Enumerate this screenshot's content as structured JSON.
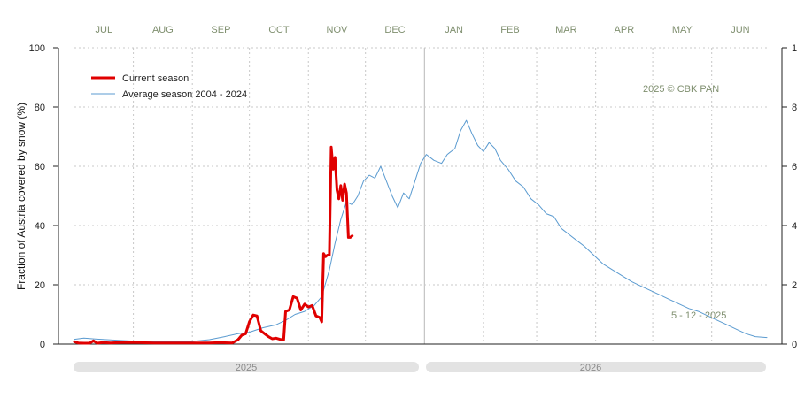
{
  "chart_data": {
    "type": "line",
    "ylabel": "Fraction of  Austria  covered by snow (%)",
    "ylim": [
      0,
      100
    ],
    "yticks": [
      0,
      20,
      40,
      60,
      80,
      100
    ],
    "x_axis": {
      "start": "2025-07-01",
      "end": "2026-06-30",
      "month_labels": [
        "JUL",
        "AUG",
        "SEP",
        "OCT",
        "NOV",
        "DEC",
        "JAN",
        "FEB",
        "MAR",
        "APR",
        "MAY",
        "JUN"
      ],
      "year_labels": [
        "2025",
        "2026"
      ]
    },
    "grid": true,
    "legend": {
      "position": "top-left"
    },
    "series": [
      {
        "name": "Current season",
        "color": "#e00000",
        "points": [
          [
            "2025-07-01",
            0.8
          ],
          [
            "2025-07-03",
            0.4
          ],
          [
            "2025-07-06",
            0.3
          ],
          [
            "2025-07-09",
            0.3
          ],
          [
            "2025-07-11",
            1.1
          ],
          [
            "2025-07-13",
            0.3
          ],
          [
            "2025-07-16",
            0.5
          ],
          [
            "2025-07-20",
            0.4
          ],
          [
            "2025-07-26",
            0.5
          ],
          [
            "2025-08-03",
            0.5
          ],
          [
            "2025-08-12",
            0.4
          ],
          [
            "2025-08-22",
            0.4
          ],
          [
            "2025-09-01",
            0.4
          ],
          [
            "2025-09-10",
            0.4
          ],
          [
            "2025-09-16",
            0.5
          ],
          [
            "2025-09-22",
            0.4
          ],
          [
            "2025-09-25",
            1.5
          ],
          [
            "2025-09-27",
            3.0
          ],
          [
            "2025-09-29",
            3.5
          ],
          [
            "2025-10-01",
            7.5
          ],
          [
            "2025-10-03",
            9.8
          ],
          [
            "2025-10-05",
            9.5
          ],
          [
            "2025-10-07",
            4.5
          ],
          [
            "2025-10-09",
            3.5
          ],
          [
            "2025-10-11",
            2.5
          ],
          [
            "2025-10-13",
            1.8
          ],
          [
            "2025-10-15",
            2.0
          ],
          [
            "2025-10-17",
            1.6
          ],
          [
            "2025-10-19",
            1.4
          ],
          [
            "2025-10-20",
            11.0
          ],
          [
            "2025-10-22",
            11.5
          ],
          [
            "2025-10-24",
            16.0
          ],
          [
            "2025-10-26",
            15.5
          ],
          [
            "2025-10-28",
            11.5
          ],
          [
            "2025-10-30",
            13.5
          ],
          [
            "2025-11-01",
            12.5
          ],
          [
            "2025-11-03",
            13.0
          ],
          [
            "2025-11-05",
            9.5
          ],
          [
            "2025-11-07",
            9.0
          ],
          [
            "2025-11-08",
            7.5
          ],
          [
            "2025-11-09",
            30.5
          ],
          [
            "2025-11-10",
            29.5
          ],
          [
            "2025-11-11",
            30.0
          ],
          [
            "2025-11-12",
            30.0
          ],
          [
            "2025-11-13",
            66.5
          ],
          [
            "2025-11-14",
            59.0
          ],
          [
            "2025-11-15",
            63.0
          ],
          [
            "2025-11-16",
            52.0
          ],
          [
            "2025-11-17",
            49.0
          ],
          [
            "2025-11-18",
            53.5
          ],
          [
            "2025-11-19",
            48.5
          ],
          [
            "2025-11-20",
            54.0
          ],
          [
            "2025-11-21",
            51.0
          ],
          [
            "2025-11-22",
            36.0
          ],
          [
            "2025-11-23",
            36.0
          ],
          [
            "2025-11-24",
            36.5
          ]
        ]
      },
      {
        "name": "Average season 2004 - 2024",
        "color": "#5b9bd0",
        "points": [
          [
            "2025-07-01",
            1.6
          ],
          [
            "2025-07-06",
            2.0
          ],
          [
            "2025-07-12",
            1.7
          ],
          [
            "2025-07-20",
            1.4
          ],
          [
            "2025-08-01",
            1.0
          ],
          [
            "2025-08-15",
            0.8
          ],
          [
            "2025-09-01",
            0.9
          ],
          [
            "2025-09-10",
            1.5
          ],
          [
            "2025-09-18",
            2.5
          ],
          [
            "2025-09-25",
            3.5
          ],
          [
            "2025-10-01",
            4.0
          ],
          [
            "2025-10-08",
            5.5
          ],
          [
            "2025-10-15",
            6.5
          ],
          [
            "2025-10-20",
            8.0
          ],
          [
            "2025-10-25",
            10.0
          ],
          [
            "2025-10-30",
            11.0
          ],
          [
            "2025-11-04",
            13.0
          ],
          [
            "2025-11-08",
            16.0
          ],
          [
            "2025-11-12",
            25.0
          ],
          [
            "2025-11-15",
            34.0
          ],
          [
            "2025-11-18",
            42.0
          ],
          [
            "2025-11-21",
            48.0
          ],
          [
            "2025-11-24",
            47.0
          ],
          [
            "2025-11-27",
            50.0
          ],
          [
            "2025-11-30",
            55.0
          ],
          [
            "2025-12-03",
            57.0
          ],
          [
            "2025-12-06",
            56.0
          ],
          [
            "2025-12-09",
            60.0
          ],
          [
            "2025-12-12",
            55.0
          ],
          [
            "2025-12-15",
            50.0
          ],
          [
            "2025-12-18",
            46.0
          ],
          [
            "2025-12-21",
            51.0
          ],
          [
            "2025-12-24",
            49.0
          ],
          [
            "2025-12-27",
            55.0
          ],
          [
            "2025-12-30",
            61.0
          ],
          [
            "2026-01-02",
            64.0
          ],
          [
            "2026-01-06",
            62.0
          ],
          [
            "2026-01-10",
            61.0
          ],
          [
            "2026-01-13",
            64.0
          ],
          [
            "2026-01-17",
            66.0
          ],
          [
            "2026-01-20",
            72.0
          ],
          [
            "2026-01-23",
            75.5
          ],
          [
            "2026-01-26",
            71.0
          ],
          [
            "2026-01-29",
            67.0
          ],
          [
            "2026-02-01",
            65.0
          ],
          [
            "2026-02-04",
            68.0
          ],
          [
            "2026-02-07",
            66.0
          ],
          [
            "2026-02-10",
            62.0
          ],
          [
            "2026-02-14",
            59.0
          ],
          [
            "2026-02-18",
            55.0
          ],
          [
            "2026-02-22",
            53.0
          ],
          [
            "2026-02-26",
            49.0
          ],
          [
            "2026-03-02",
            47.0
          ],
          [
            "2026-03-06",
            44.0
          ],
          [
            "2026-03-10",
            43.0
          ],
          [
            "2026-03-14",
            39.0
          ],
          [
            "2026-03-18",
            37.0
          ],
          [
            "2026-03-22",
            35.0
          ],
          [
            "2026-03-26",
            33.0
          ],
          [
            "2026-03-31",
            30.0
          ],
          [
            "2026-04-05",
            27.0
          ],
          [
            "2026-04-10",
            25.0
          ],
          [
            "2026-04-15",
            23.0
          ],
          [
            "2026-04-20",
            21.0
          ],
          [
            "2026-04-25",
            19.5
          ],
          [
            "2026-04-30",
            18.0
          ],
          [
            "2026-05-05",
            16.5
          ],
          [
            "2026-05-10",
            15.0
          ],
          [
            "2026-05-15",
            13.5
          ],
          [
            "2026-05-20",
            12.0
          ],
          [
            "2026-05-25",
            11.0
          ],
          [
            "2026-05-30",
            9.5
          ],
          [
            "2026-06-04",
            8.0
          ],
          [
            "2026-06-09",
            6.5
          ],
          [
            "2026-06-14",
            5.0
          ],
          [
            "2026-06-19",
            3.5
          ],
          [
            "2026-06-24",
            2.5
          ],
          [
            "2026-06-30",
            2.2
          ]
        ]
      }
    ],
    "annotations": [
      "2025  © CBK PAN",
      "5 - 12 - 2025"
    ]
  }
}
